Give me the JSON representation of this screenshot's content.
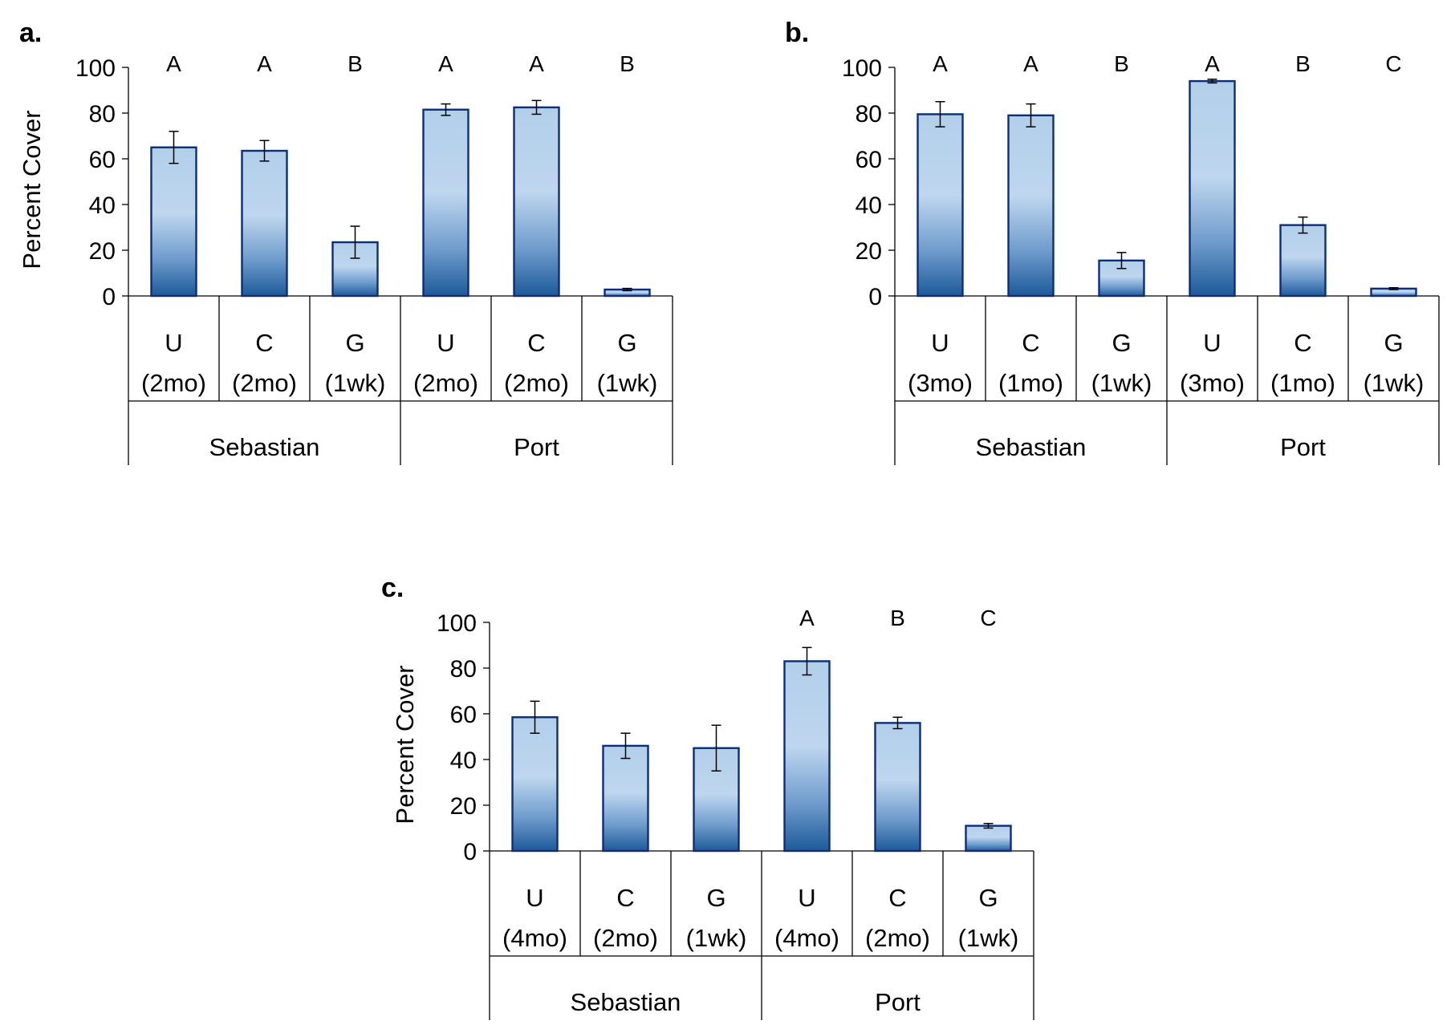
{
  "chart_data": [
    {
      "panel": "a.",
      "type": "bar",
      "ylabel": "Percent Cover",
      "ylim": [
        0,
        100
      ],
      "yticks": [
        0,
        20,
        40,
        60,
        80,
        100
      ],
      "groups": [
        {
          "name": "Sebastian",
          "bars": [
            {
              "letter": "U",
              "duration": "(2mo)",
              "value": 65,
              "error": 7,
              "sig": "A"
            },
            {
              "letter": "C",
              "duration": "(2mo)",
              "value": 63.5,
              "error": 4.5,
              "sig": "A"
            },
            {
              "letter": "G",
              "duration": "(1wk)",
              "value": 23.5,
              "error": 7,
              "sig": "B"
            }
          ]
        },
        {
          "name": "Port",
          "bars": [
            {
              "letter": "U",
              "duration": "(2mo)",
              "value": 81.5,
              "error": 2.5,
              "sig": "A"
            },
            {
              "letter": "C",
              "duration": "(2mo)",
              "value": 82.5,
              "error": 3,
              "sig": "A"
            },
            {
              "letter": "G",
              "duration": "(1wk)",
              "value": 2.8,
              "error": 0.5,
              "sig": "B"
            }
          ]
        }
      ]
    },
    {
      "panel": "b.",
      "type": "bar",
      "ylabel": "",
      "ylim": [
        0,
        100
      ],
      "yticks": [
        0,
        20,
        40,
        60,
        80,
        100
      ],
      "groups": [
        {
          "name": "Sebastian",
          "bars": [
            {
              "letter": "U",
              "duration": "(3mo)",
              "value": 79.5,
              "error": 5.5,
              "sig": "A"
            },
            {
              "letter": "C",
              "duration": "(1mo)",
              "value": 79,
              "error": 5,
              "sig": "A"
            },
            {
              "letter": "G",
              "duration": "(1wk)",
              "value": 15.5,
              "error": 3.5,
              "sig": "B"
            }
          ]
        },
        {
          "name": "Port",
          "bars": [
            {
              "letter": "U",
              "duration": "(3mo)",
              "value": 94,
              "error": 0.8,
              "sig": "A"
            },
            {
              "letter": "C",
              "duration": "(1mo)",
              "value": 31,
              "error": 3.5,
              "sig": "B"
            },
            {
              "letter": "G",
              "duration": "(1wk)",
              "value": 3.2,
              "error": 0.4,
              "sig": "C"
            }
          ]
        }
      ]
    },
    {
      "panel": "c.",
      "type": "bar",
      "ylabel": "Percent Cover",
      "ylim": [
        0,
        100
      ],
      "yticks": [
        0,
        20,
        40,
        60,
        80,
        100
      ],
      "groups": [
        {
          "name": "Sebastian",
          "bars": [
            {
              "letter": "U",
              "duration": "(4mo)",
              "value": 58.5,
              "error": 7,
              "sig": ""
            },
            {
              "letter": "C",
              "duration": "(2mo)",
              "value": 46,
              "error": 5.5,
              "sig": ""
            },
            {
              "letter": "G",
              "duration": "(1wk)",
              "value": 45,
              "error": 10,
              "sig": ""
            }
          ]
        },
        {
          "name": "Port",
          "bars": [
            {
              "letter": "U",
              "duration": "(4mo)",
              "value": 83,
              "error": 6,
              "sig": "A"
            },
            {
              "letter": "C",
              "duration": "(2mo)",
              "value": 56,
              "error": 2.5,
              "sig": "B"
            },
            {
              "letter": "G",
              "duration": "(1wk)",
              "value": 11,
              "error": 1,
              "sig": "C"
            }
          ]
        }
      ]
    }
  ]
}
